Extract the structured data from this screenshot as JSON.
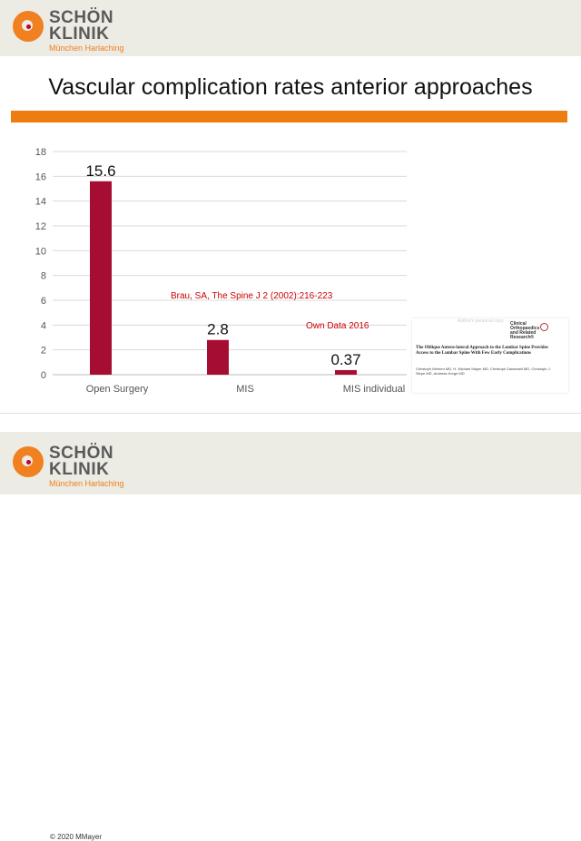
{
  "header": {
    "logo_line1": "SCHÖN",
    "logo_line2": "KLINIK",
    "logo_sub": "München Harlaching"
  },
  "slide_title": "Vascular complication rates anterior approaches",
  "annotations": {
    "ref": "Brau, SA, The Spine J 2 (2002):216-223",
    "own": "Own Data 2016"
  },
  "paper": {
    "author_copy": "Author's personal copy",
    "journal": "Clinical Orthopaedics and Related Research®",
    "title": "The Oblique Antero-lateral Approach to the Lumbar Spine Provides Access to the Lumbar Spine With Few Early Complications",
    "authors": "Christoph Mehren MD, H. Michael Mayer MD, Christoph Zandanell MD, Christoph J. Siepe MD, Andreas Korge MD"
  },
  "footer": {
    "copyright": "© 2020 MMayer",
    "logo_line1": "SCHÖN",
    "logo_line2": "KLINIK",
    "logo_sub": "München Harlaching"
  },
  "colors": {
    "bar": "#a50d32",
    "accent_orange": "#ee7d11",
    "grid": "#d9d9d9"
  },
  "chart_data": {
    "type": "bar",
    "categories": [
      "Open Surgery",
      "MIS",
      "MIS individual"
    ],
    "values": [
      15.6,
      2.8,
      0.37
    ],
    "value_labels": [
      "15.6",
      "2.8",
      "0.37"
    ],
    "ylim": [
      0,
      18
    ],
    "yticks": [
      0,
      2,
      4,
      6,
      8,
      10,
      12,
      14,
      16,
      18
    ],
    "grid": true,
    "legend": "none"
  }
}
